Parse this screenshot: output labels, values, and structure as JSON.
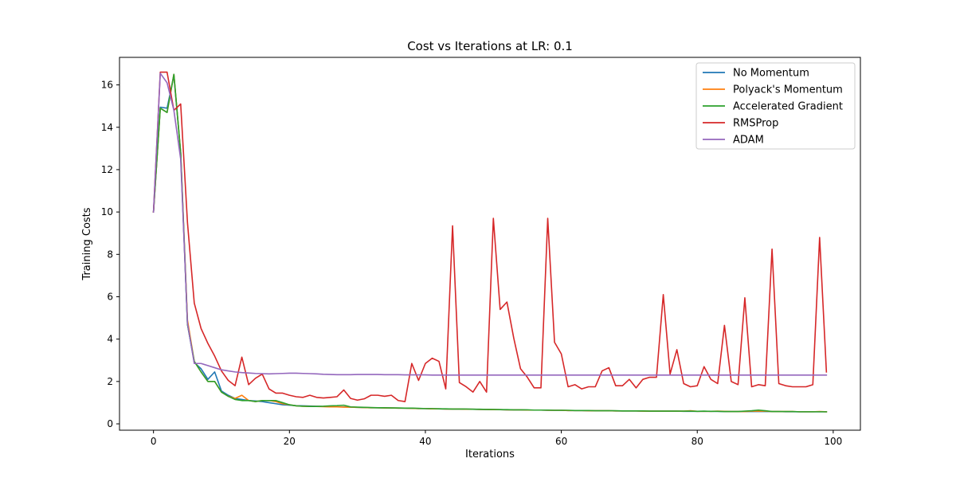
{
  "chart_data": {
    "type": "line",
    "title": "Cost vs Iterations at LR: 0.1",
    "xlabel": "Iterations",
    "ylabel": "Training Costs",
    "xlim": [
      -5.0,
      104.0
    ],
    "ylim": [
      -0.3,
      17.3
    ],
    "xticks": [
      0,
      20,
      40,
      60,
      80,
      100
    ],
    "yticks": [
      0,
      2,
      4,
      6,
      8,
      10,
      12,
      14,
      16
    ],
    "grid": false,
    "legend_position": "top-right",
    "series": [
      {
        "name": "No Momentum",
        "color": "#1f77b4",
        "values": [
          10.0,
          14.95,
          14.9,
          16.45,
          12.8,
          4.7,
          2.9,
          2.6,
          2.1,
          2.45,
          1.55,
          1.35,
          1.2,
          1.15,
          1.1,
          1.08,
          1.05,
          1.0,
          0.95,
          0.9,
          0.88,
          0.86,
          0.85,
          0.84,
          0.83,
          0.82,
          0.81,
          0.8,
          0.8,
          0.79,
          0.78,
          0.77,
          0.76,
          0.76,
          0.75,
          0.75,
          0.74,
          0.74,
          0.73,
          0.72,
          0.72,
          0.71,
          0.71,
          0.7,
          0.7,
          0.7,
          0.69,
          0.69,
          0.68,
          0.68,
          0.67,
          0.67,
          0.66,
          0.66,
          0.66,
          0.65,
          0.65,
          0.65,
          0.64,
          0.64,
          0.64,
          0.63,
          0.63,
          0.63,
          0.62,
          0.62,
          0.62,
          0.62,
          0.61,
          0.61,
          0.61,
          0.61,
          0.6,
          0.6,
          0.6,
          0.6,
          0.6,
          0.6,
          0.59,
          0.59,
          0.59,
          0.59,
          0.59,
          0.59,
          0.58,
          0.58,
          0.58,
          0.58,
          0.58,
          0.58,
          0.58,
          0.58,
          0.58,
          0.57,
          0.57,
          0.57,
          0.57,
          0.57,
          0.57,
          0.57
        ]
      },
      {
        "name": "Polyack's Momentum",
        "color": "#ff7f0e",
        "values": [
          10.0,
          14.9,
          14.7,
          16.5,
          12.8,
          4.9,
          2.95,
          2.45,
          2.0,
          2.0,
          1.5,
          1.3,
          1.2,
          1.35,
          1.1,
          1.05,
          1.1,
          1.1,
          1.05,
          0.95,
          0.9,
          0.85,
          0.83,
          0.82,
          0.82,
          0.81,
          0.8,
          0.8,
          0.79,
          0.79,
          0.78,
          0.77,
          0.76,
          0.76,
          0.75,
          0.75,
          0.74,
          0.74,
          0.73,
          0.72,
          0.72,
          0.71,
          0.71,
          0.7,
          0.7,
          0.7,
          0.69,
          0.69,
          0.68,
          0.68,
          0.67,
          0.67,
          0.66,
          0.66,
          0.66,
          0.65,
          0.65,
          0.65,
          0.64,
          0.64,
          0.64,
          0.63,
          0.63,
          0.63,
          0.62,
          0.62,
          0.62,
          0.62,
          0.61,
          0.61,
          0.61,
          0.61,
          0.6,
          0.6,
          0.6,
          0.6,
          0.6,
          0.6,
          0.6,
          0.62,
          0.59,
          0.59,
          0.59,
          0.6,
          0.59,
          0.58,
          0.58,
          0.58,
          0.6,
          0.6,
          0.6,
          0.58,
          0.58,
          0.58,
          0.58,
          0.57,
          0.57,
          0.57,
          0.58,
          0.57
        ]
      },
      {
        "name": "Accelerated Gradient",
        "color": "#2ca02c",
        "values": [
          10.0,
          14.9,
          14.7,
          16.5,
          12.8,
          4.7,
          2.95,
          2.45,
          2.0,
          2.0,
          1.5,
          1.3,
          1.15,
          1.1,
          1.1,
          1.05,
          1.1,
          1.1,
          1.1,
          1.0,
          0.9,
          0.85,
          0.83,
          0.82,
          0.82,
          0.83,
          0.85,
          0.86,
          0.88,
          0.8,
          0.79,
          0.78,
          0.77,
          0.76,
          0.76,
          0.75,
          0.75,
          0.74,
          0.74,
          0.73,
          0.72,
          0.72,
          0.71,
          0.71,
          0.7,
          0.7,
          0.7,
          0.69,
          0.69,
          0.68,
          0.68,
          0.67,
          0.67,
          0.66,
          0.66,
          0.66,
          0.65,
          0.65,
          0.65,
          0.64,
          0.64,
          0.64,
          0.63,
          0.63,
          0.63,
          0.62,
          0.62,
          0.62,
          0.62,
          0.61,
          0.61,
          0.61,
          0.61,
          0.6,
          0.6,
          0.6,
          0.6,
          0.6,
          0.6,
          0.6,
          0.59,
          0.6,
          0.59,
          0.59,
          0.58,
          0.58,
          0.58,
          0.6,
          0.62,
          0.65,
          0.62,
          0.58,
          0.58,
          0.58,
          0.58,
          0.57,
          0.57,
          0.57,
          0.57,
          0.57
        ]
      },
      {
        "name": "RMSProp",
        "color": "#d62728",
        "values": [
          10.0,
          16.6,
          16.6,
          14.8,
          15.1,
          9.5,
          5.7,
          4.5,
          3.8,
          3.2,
          2.5,
          2.05,
          1.8,
          3.15,
          1.85,
          2.15,
          2.35,
          1.65,
          1.45,
          1.45,
          1.35,
          1.28,
          1.25,
          1.35,
          1.25,
          1.22,
          1.25,
          1.28,
          1.6,
          1.2,
          1.12,
          1.18,
          1.35,
          1.35,
          1.3,
          1.35,
          1.1,
          1.05,
          2.85,
          2.05,
          2.85,
          3.1,
          2.95,
          1.65,
          9.35,
          1.95,
          1.75,
          1.5,
          2.0,
          1.5,
          9.7,
          5.4,
          5.75,
          4.05,
          2.6,
          2.2,
          1.7,
          1.7,
          9.7,
          3.85,
          3.3,
          1.75,
          1.85,
          1.65,
          1.75,
          1.75,
          2.5,
          2.65,
          1.8,
          1.8,
          2.1,
          1.7,
          2.1,
          2.2,
          2.2,
          6.1,
          2.35,
          3.5,
          1.9,
          1.75,
          1.8,
          2.7,
          2.1,
          1.9,
          4.65,
          2.0,
          1.85,
          5.95,
          1.75,
          1.85,
          1.8,
          8.25,
          1.9,
          1.8,
          1.75,
          1.75,
          1.75,
          1.85,
          8.8,
          2.45
        ]
      },
      {
        "name": "ADAM",
        "color": "#9467bd",
        "values": [
          10.0,
          16.55,
          16.1,
          14.8,
          12.5,
          4.75,
          2.85,
          2.85,
          2.75,
          2.65,
          2.55,
          2.5,
          2.45,
          2.42,
          2.4,
          2.38,
          2.37,
          2.36,
          2.37,
          2.38,
          2.39,
          2.39,
          2.38,
          2.37,
          2.36,
          2.34,
          2.33,
          2.32,
          2.32,
          2.32,
          2.33,
          2.33,
          2.33,
          2.33,
          2.32,
          2.32,
          2.32,
          2.31,
          2.31,
          2.31,
          2.31,
          2.3,
          2.3,
          2.3,
          2.3,
          2.3,
          2.3,
          2.3,
          2.3,
          2.3,
          2.3,
          2.3,
          2.3,
          2.3,
          2.3,
          2.3,
          2.3,
          2.3,
          2.3,
          2.3,
          2.3,
          2.3,
          2.3,
          2.3,
          2.3,
          2.3,
          2.3,
          2.3,
          2.3,
          2.3,
          2.3,
          2.3,
          2.3,
          2.3,
          2.3,
          2.3,
          2.3,
          2.3,
          2.3,
          2.3,
          2.3,
          2.3,
          2.3,
          2.3,
          2.3,
          2.3,
          2.3,
          2.3,
          2.3,
          2.3,
          2.3,
          2.3,
          2.3,
          2.3,
          2.3,
          2.3,
          2.3,
          2.3,
          2.3,
          2.3
        ]
      }
    ]
  }
}
